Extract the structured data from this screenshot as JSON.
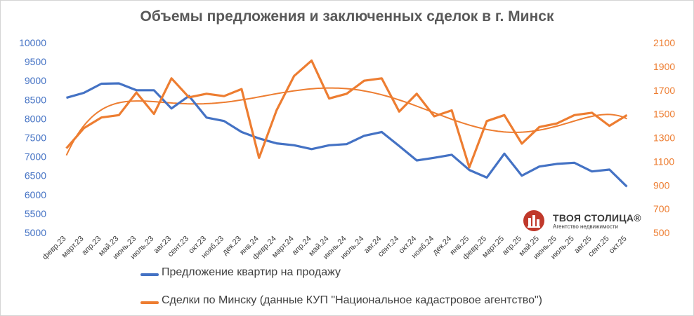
{
  "chart_data": {
    "type": "line",
    "title": "Объемы предложения и заключенных сделок в г. Минск",
    "categories": [
      "февр.23",
      "март.23",
      "апр.23",
      "май.23",
      "июнь.23",
      "июль.23",
      "авг.23",
      "сент.23",
      "окт.23",
      "нояб.23",
      "дек.23",
      "янв.24",
      "февр.24",
      "март.24",
      "апр.24",
      "май.24",
      "июнь.24",
      "июль.24",
      "авг.24",
      "сент.24",
      "окт.24",
      "нояб.24",
      "дек.24",
      "янв.25",
      "февр.25",
      "март.25",
      "апр.25",
      "май.25",
      "июнь.25",
      "июль.25",
      "авг.25",
      "сент.25",
      "окт.25"
    ],
    "y_left": {
      "min": 5000,
      "max": 10000,
      "ticks": [
        5000,
        5500,
        6000,
        6500,
        7000,
        7500,
        8000,
        8500,
        9000,
        9500,
        10000
      ],
      "color": "#4472C4"
    },
    "y_right": {
      "min": 500,
      "max": 2100,
      "ticks": [
        500,
        700,
        900,
        1100,
        1300,
        1500,
        1700,
        1900,
        2100
      ],
      "color": "#ED7D31"
    },
    "series": [
      {
        "name": "Предложение квартир на продажу",
        "axis": "left",
        "color": "#4472C4",
        "values": [
          8550,
          8680,
          8920,
          8930,
          8750,
          8750,
          8270,
          8600,
          8030,
          7940,
          7650,
          7480,
          7350,
          7300,
          7200,
          7300,
          7330,
          7550,
          7650,
          7280,
          6900,
          6970,
          7050,
          6650,
          6450,
          7080,
          6500,
          6740,
          6810,
          6840,
          6610,
          6660,
          6210
        ]
      },
      {
        "name": "Сделки по Минску (данные КУП \"Национальное кадастровое агентство\")",
        "axis": "right",
        "color": "#ED7D31",
        "values": [
          1210,
          1380,
          1470,
          1490,
          1680,
          1500,
          1800,
          1640,
          1670,
          1650,
          1710,
          1130,
          1530,
          1820,
          1950,
          1630,
          1670,
          1780,
          1800,
          1520,
          1670,
          1480,
          1530,
          1050,
          1440,
          1490,
          1250,
          1390,
          1420,
          1490,
          1510,
          1400,
          1490
        ]
      }
    ],
    "trendlines": [
      {
        "series": 1,
        "type": "polynomial",
        "color": "#ED7D31"
      }
    ],
    "legend_position": "bottom-left"
  },
  "logo": {
    "name": "ТВОЯ СТОЛИЦА®",
    "subtitle": "Агентство недвижимости",
    "color": "#C0392B"
  }
}
